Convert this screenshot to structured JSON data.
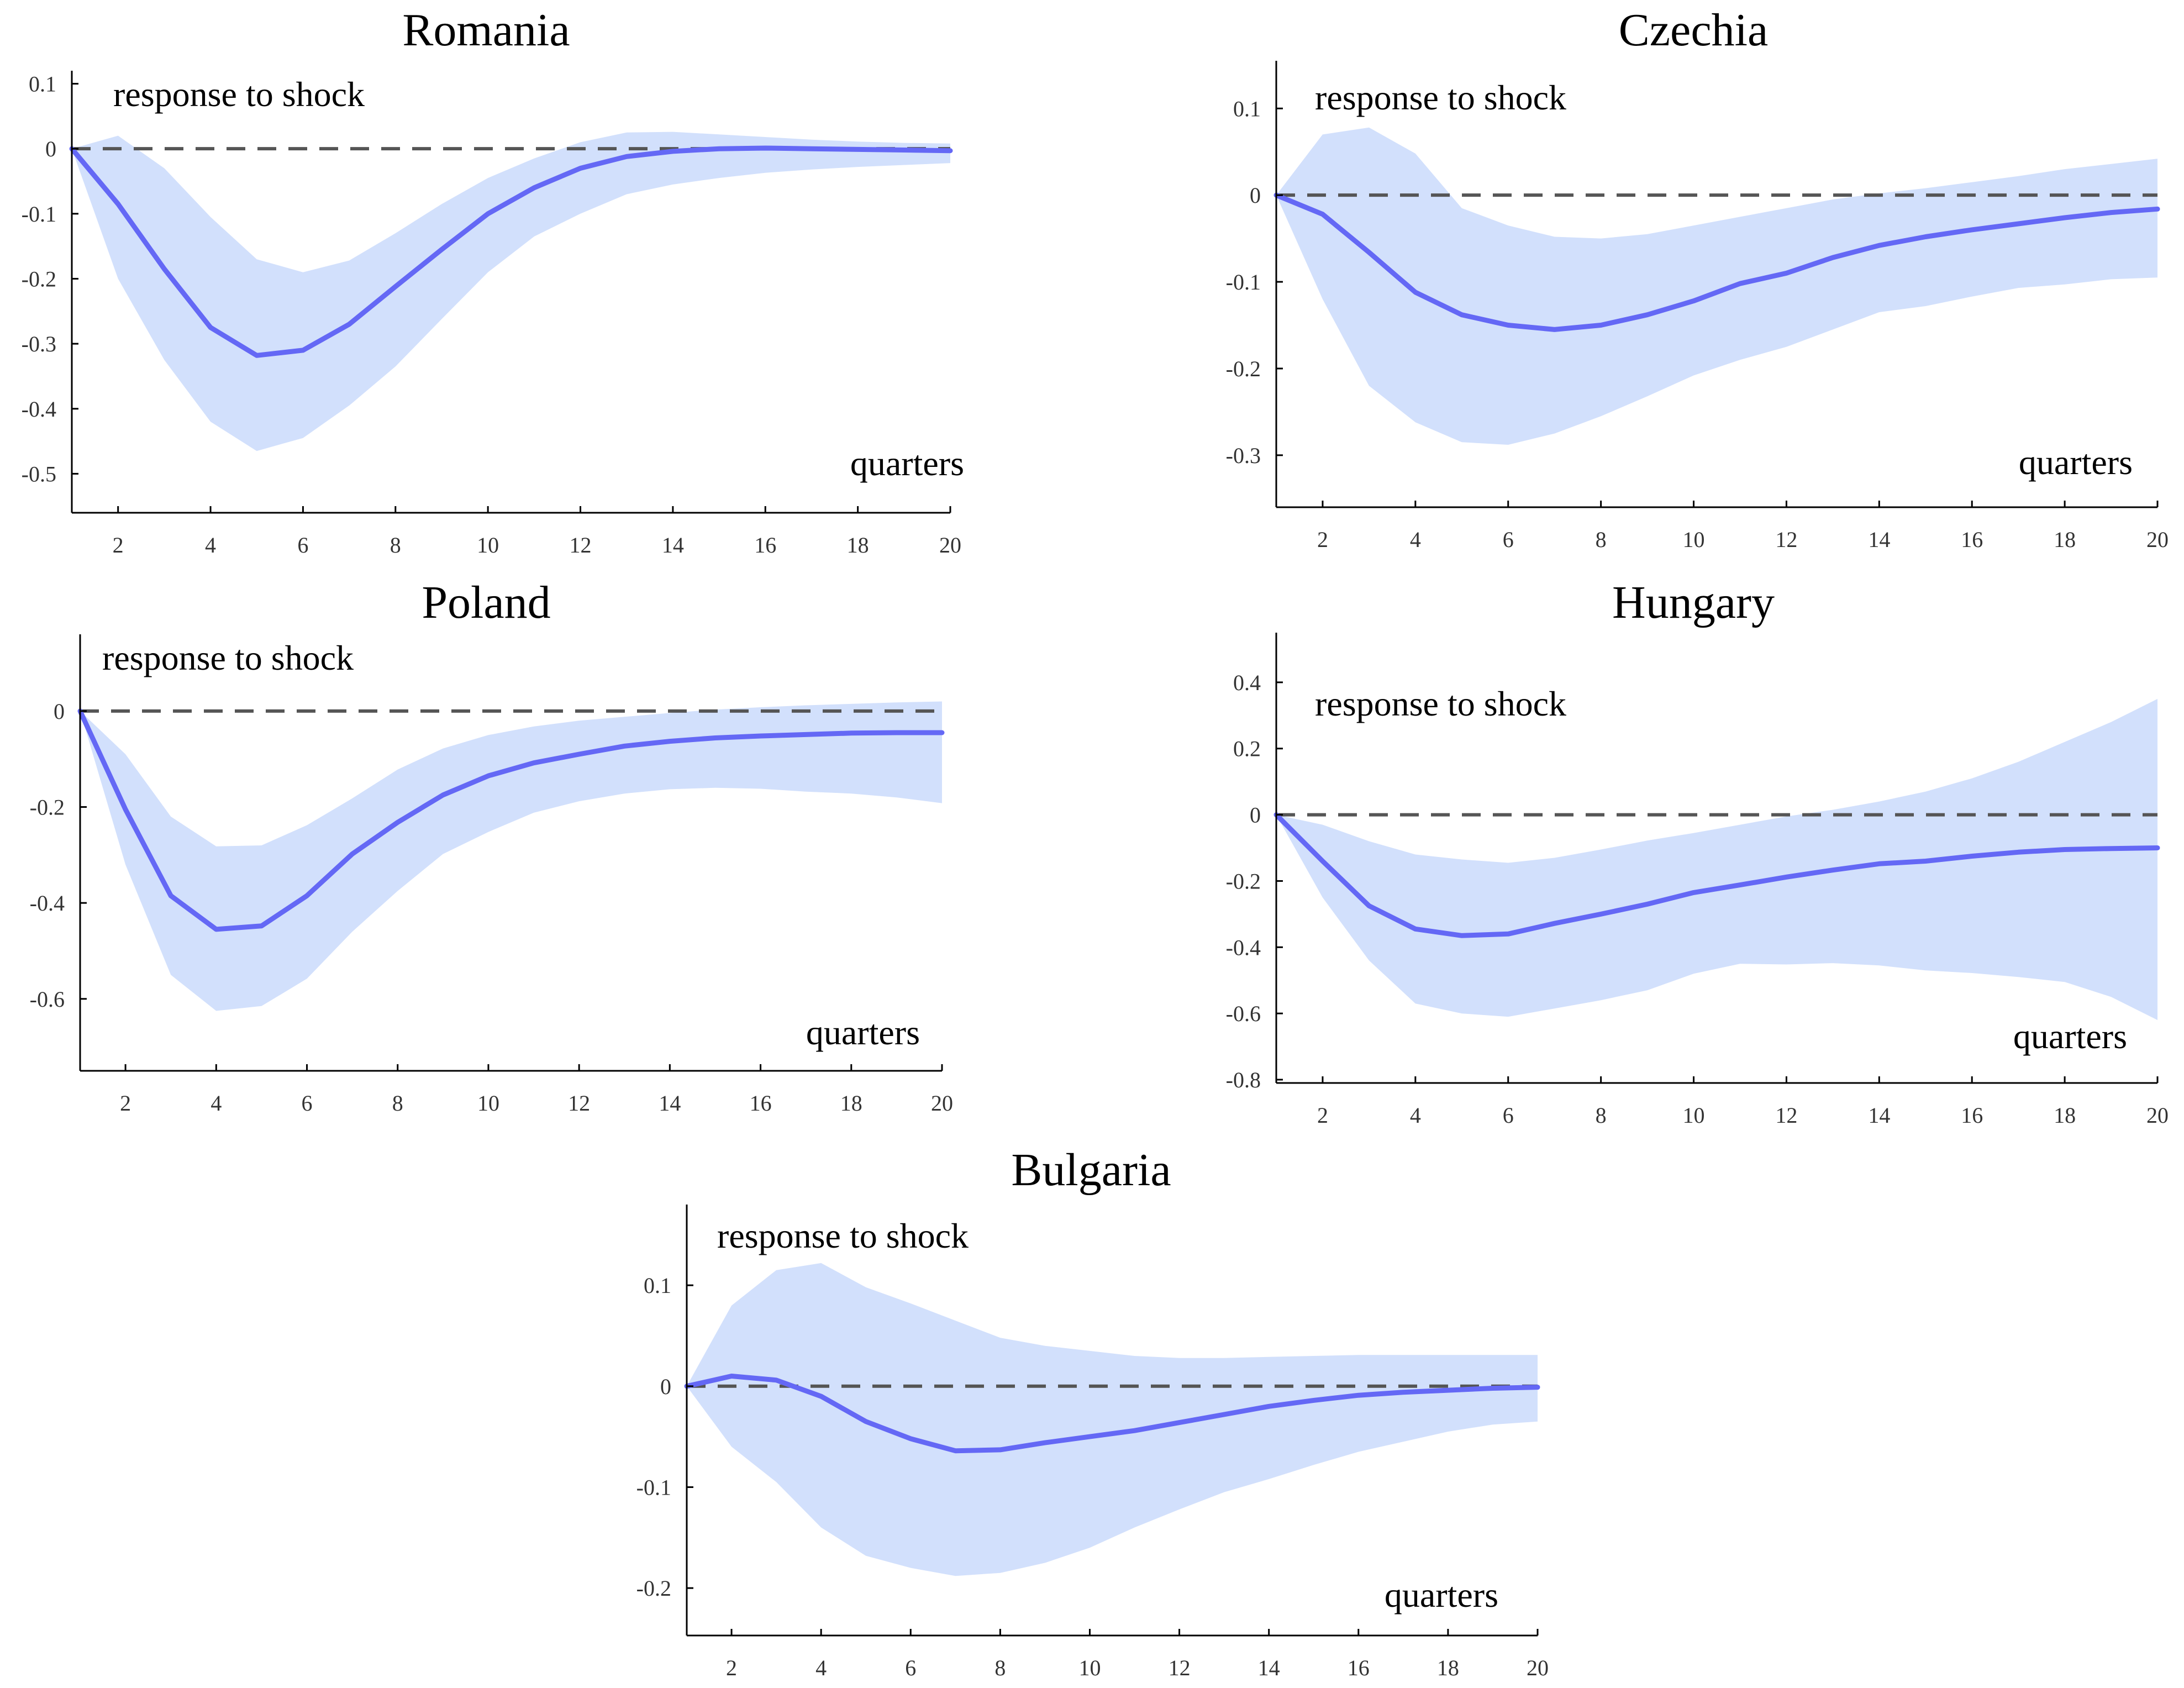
{
  "colors": {
    "band": "#d2e0fc",
    "line": "#6468f5",
    "zero": "#555555"
  },
  "chart_data": [
    {
      "type": "area",
      "title": "Romania",
      "ylabel": "response to shock",
      "xlabel": "quarters",
      "x": [
        1,
        2,
        3,
        4,
        5,
        6,
        7,
        8,
        9,
        10,
        11,
        12,
        13,
        14,
        15,
        16,
        17,
        18,
        19,
        20
      ],
      "xticks": [
        2,
        4,
        6,
        8,
        10,
        12,
        14,
        16,
        18,
        20
      ],
      "xtick_labels": [
        "2",
        "4",
        "6",
        "8",
        "10",
        "12",
        "14",
        "16",
        "18",
        "20"
      ],
      "yticks": [
        0.1,
        0,
        -0.1,
        -0.2,
        -0.3,
        -0.4,
        -0.5
      ],
      "ytick_labels": [
        "0.1",
        "0",
        "-0.1",
        "-0.2",
        "-0.3",
        "-0.4",
        "-0.5"
      ],
      "xlim": [
        1,
        20
      ],
      "ylim": [
        -0.56,
        0.12
      ],
      "series": [
        {
          "name": "response",
          "values": [
            0,
            -0.085,
            -0.185,
            -0.275,
            -0.318,
            -0.31,
            -0.27,
            -0.212,
            -0.155,
            -0.1,
            -0.06,
            -0.03,
            -0.012,
            -0.004,
            0,
            0.001,
            0,
            -0.001,
            -0.002,
            -0.003
          ]
        },
        {
          "name": "lower",
          "values": [
            0,
            -0.2,
            -0.325,
            -0.42,
            -0.465,
            -0.445,
            -0.395,
            -0.335,
            -0.262,
            -0.19,
            -0.135,
            -0.1,
            -0.07,
            -0.055,
            -0.045,
            -0.037,
            -0.032,
            -0.028,
            -0.025,
            -0.022
          ]
        },
        {
          "name": "upper",
          "values": [
            0,
            0.02,
            -0.03,
            -0.105,
            -0.17,
            -0.19,
            -0.172,
            -0.13,
            -0.085,
            -0.045,
            -0.015,
            0.01,
            0.025,
            0.026,
            0.022,
            0.018,
            0.014,
            0.011,
            0.009,
            0.008
          ]
        }
      ]
    },
    {
      "type": "area",
      "title": "Czechia",
      "ylabel": "response to shock",
      "xlabel": "quarters",
      "x": [
        1,
        2,
        3,
        4,
        5,
        6,
        7,
        8,
        9,
        10,
        11,
        12,
        13,
        14,
        15,
        16,
        17,
        18,
        19,
        20
      ],
      "xticks": [
        2,
        4,
        6,
        8,
        10,
        12,
        14,
        16,
        18,
        20
      ],
      "xtick_labels": [
        "2",
        "4",
        "6",
        "8",
        "10",
        "12",
        "14",
        "16",
        "18",
        "20"
      ],
      "yticks": [
        0.1,
        0,
        -0.1,
        -0.2,
        -0.3
      ],
      "ytick_labels": [
        "0.1",
        "0",
        "-0.1",
        "-0.2",
        "-0.3"
      ],
      "xlim": [
        1,
        20
      ],
      "ylim": [
        -0.36,
        0.155
      ],
      "series": [
        {
          "name": "response",
          "values": [
            0,
            -0.022,
            -0.066,
            -0.112,
            -0.138,
            -0.15,
            -0.155,
            -0.15,
            -0.138,
            -0.122,
            -0.102,
            -0.09,
            -0.072,
            -0.058,
            -0.048,
            -0.04,
            -0.033,
            -0.026,
            -0.02,
            -0.016
          ]
        },
        {
          "name": "lower",
          "values": [
            0,
            -0.12,
            -0.22,
            -0.262,
            -0.285,
            -0.288,
            -0.275,
            -0.255,
            -0.232,
            -0.208,
            -0.19,
            -0.175,
            -0.155,
            -0.135,
            -0.128,
            -0.117,
            -0.107,
            -0.103,
            -0.097,
            -0.095
          ]
        },
        {
          "name": "upper",
          "values": [
            0,
            0.07,
            0.078,
            0.048,
            -0.015,
            -0.035,
            -0.048,
            -0.05,
            -0.045,
            -0.035,
            -0.025,
            -0.015,
            -0.005,
            0.002,
            0.008,
            0.015,
            0.022,
            0.03,
            0.036,
            0.042
          ]
        }
      ]
    },
    {
      "type": "area",
      "title": "Poland",
      "ylabel": "response to shock",
      "xlabel": "quarters",
      "x": [
        1,
        2,
        3,
        4,
        5,
        6,
        7,
        8,
        9,
        10,
        11,
        12,
        13,
        14,
        15,
        16,
        17,
        18,
        19,
        20
      ],
      "xticks": [
        2,
        4,
        6,
        8,
        10,
        12,
        14,
        16,
        18,
        20
      ],
      "xtick_labels": [
        "2",
        "4",
        "6",
        "8",
        "10",
        "12",
        "14",
        "16",
        "18",
        "20"
      ],
      "yticks": [
        0,
        -0.2,
        -0.4,
        -0.6
      ],
      "ytick_labels": [
        "0",
        "-0.2",
        "-0.4",
        "-0.6"
      ],
      "xlim": [
        1,
        20
      ],
      "ylim": [
        -0.75,
        0.16
      ],
      "series": [
        {
          "name": "response",
          "values": [
            0,
            -0.205,
            -0.385,
            -0.455,
            -0.448,
            -0.385,
            -0.298,
            -0.232,
            -0.175,
            -0.135,
            -0.108,
            -0.09,
            -0.073,
            -0.063,
            -0.056,
            -0.052,
            -0.049,
            -0.046,
            -0.045,
            -0.045
          ]
        },
        {
          "name": "lower",
          "values": [
            0,
            -0.32,
            -0.55,
            -0.625,
            -0.615,
            -0.558,
            -0.46,
            -0.375,
            -0.298,
            -0.252,
            -0.212,
            -0.188,
            -0.172,
            -0.163,
            -0.16,
            -0.162,
            -0.168,
            -0.172,
            -0.18,
            -0.192
          ]
        },
        {
          "name": "upper",
          "values": [
            0,
            -0.09,
            -0.22,
            -0.282,
            -0.28,
            -0.238,
            -0.182,
            -0.122,
            -0.078,
            -0.05,
            -0.032,
            -0.02,
            -0.012,
            -0.004,
            0.003,
            0.008,
            0.012,
            0.015,
            0.018,
            0.02
          ]
        }
      ]
    },
    {
      "type": "area",
      "title": "Hungary",
      "ylabel": "response to shock",
      "xlabel": "quarters",
      "x": [
        1,
        2,
        3,
        4,
        5,
        6,
        7,
        8,
        9,
        10,
        11,
        12,
        13,
        14,
        15,
        16,
        17,
        18,
        19,
        20
      ],
      "xticks": [
        2,
        4,
        6,
        8,
        10,
        12,
        14,
        16,
        18,
        20
      ],
      "xtick_labels": [
        "2",
        "4",
        "6",
        "8",
        "10",
        "12",
        "14",
        "16",
        "18",
        "20"
      ],
      "yticks": [
        0.4,
        0.2,
        0,
        -0.2,
        -0.4,
        -0.6,
        -0.8
      ],
      "ytick_labels": [
        "0.4",
        "0.2",
        "0",
        "-0.2",
        "-0.4",
        "-0.6",
        "-0.8"
      ],
      "xlim": [
        1,
        20
      ],
      "ylim": [
        -0.81,
        0.55
      ],
      "series": [
        {
          "name": "response",
          "values": [
            0,
            -0.14,
            -0.275,
            -0.345,
            -0.365,
            -0.36,
            -0.328,
            -0.3,
            -0.27,
            -0.235,
            -0.212,
            -0.188,
            -0.167,
            -0.148,
            -0.14,
            -0.125,
            -0.113,
            -0.105,
            -0.102,
            -0.1
          ]
        },
        {
          "name": "lower",
          "values": [
            0,
            -0.25,
            -0.44,
            -0.57,
            -0.6,
            -0.61,
            -0.585,
            -0.56,
            -0.53,
            -0.48,
            -0.45,
            -0.452,
            -0.448,
            -0.455,
            -0.47,
            -0.478,
            -0.49,
            -0.505,
            -0.55,
            -0.62
          ]
        },
        {
          "name": "upper",
          "values": [
            0,
            -0.03,
            -0.08,
            -0.12,
            -0.135,
            -0.145,
            -0.13,
            -0.105,
            -0.078,
            -0.055,
            -0.03,
            -0.005,
            0.015,
            0.04,
            0.07,
            0.11,
            0.16,
            0.22,
            0.28,
            0.35
          ]
        }
      ]
    },
    {
      "type": "area",
      "title": "Bulgaria",
      "ylabel": "response to shock",
      "xlabel": "quarters",
      "x": [
        1,
        2,
        3,
        4,
        5,
        6,
        7,
        8,
        9,
        10,
        11,
        12,
        13,
        14,
        15,
        16,
        17,
        18,
        19,
        20
      ],
      "xticks": [
        2,
        4,
        6,
        8,
        10,
        12,
        14,
        16,
        18,
        20
      ],
      "xtick_labels": [
        "2",
        "4",
        "6",
        "8",
        "10",
        "12",
        "14",
        "16",
        "18",
        "20"
      ],
      "yticks": [
        0.1,
        0,
        -0.1,
        -0.2
      ],
      "ytick_labels": [
        "0.1",
        "0",
        "-0.1",
        "-0.2"
      ],
      "xlim": [
        1,
        20
      ],
      "ylim": [
        -0.247,
        0.18
      ],
      "series": [
        {
          "name": "response",
          "values": [
            0,
            0.01,
            0.006,
            -0.01,
            -0.035,
            -0.052,
            -0.064,
            -0.063,
            -0.056,
            -0.05,
            -0.044,
            -0.036,
            -0.028,
            -0.02,
            -0.014,
            -0.009,
            -0.006,
            -0.004,
            -0.002,
            -0.001
          ]
        },
        {
          "name": "lower",
          "values": [
            0,
            -0.06,
            -0.095,
            -0.14,
            -0.168,
            -0.18,
            -0.188,
            -0.185,
            -0.175,
            -0.16,
            -0.14,
            -0.122,
            -0.105,
            -0.092,
            -0.078,
            -0.065,
            -0.055,
            -0.045,
            -0.038,
            -0.035
          ]
        },
        {
          "name": "upper",
          "values": [
            0,
            0.08,
            0.115,
            0.122,
            0.098,
            0.082,
            0.065,
            0.048,
            0.04,
            0.035,
            0.03,
            0.028,
            0.028,
            0.029,
            0.03,
            0.031,
            0.031,
            0.031,
            0.031,
            0.031
          ]
        }
      ]
    }
  ]
}
